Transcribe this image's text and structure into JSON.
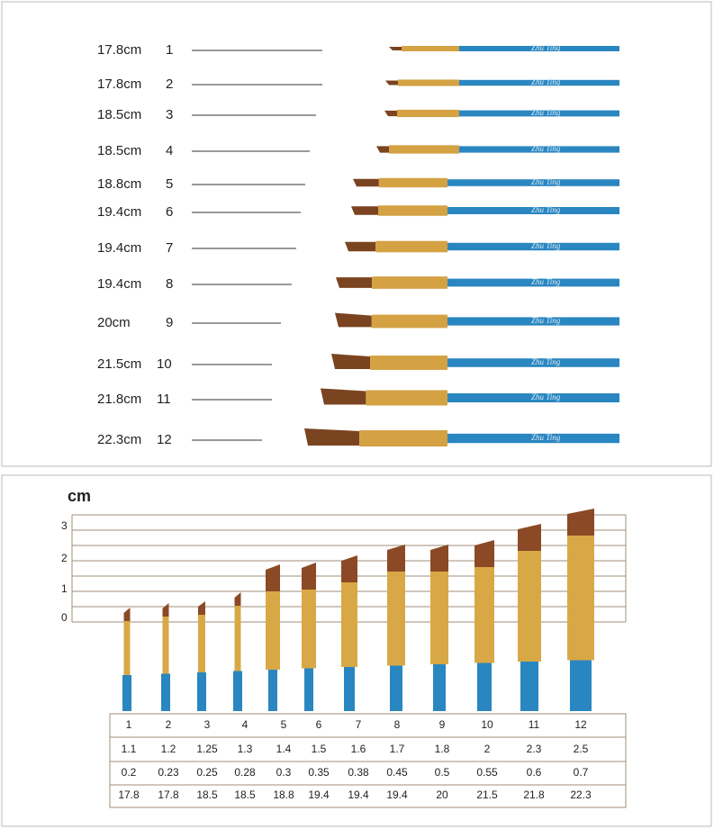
{
  "top_panel": {
    "brand": "Zhu Ting",
    "rows": [
      {
        "length": "17.8cm",
        "number": "1"
      },
      {
        "length": "17.8cm",
        "number": "2"
      },
      {
        "length": "18.5cm",
        "number": "3"
      },
      {
        "length": "18.5cm",
        "number": "4"
      },
      {
        "length": "18.8cm",
        "number": "5"
      },
      {
        "length": "19.4cm",
        "number": "6"
      },
      {
        "length": "19.4cm",
        "number": "7"
      },
      {
        "length": "19.4cm",
        "number": "8"
      },
      {
        "length": "20cm",
        "number": "9"
      },
      {
        "length": "21.5cm",
        "number": "10"
      },
      {
        "length": "21.8cm",
        "number": "11"
      },
      {
        "length": "22.3cm",
        "number": "12"
      }
    ]
  },
  "bottom_panel": {
    "unit": "cm",
    "ruler_ticks": [
      "0",
      "1",
      "2",
      "3"
    ],
    "table": {
      "rows": [
        [
          "1",
          "2",
          "3",
          "4",
          "5",
          "6",
          "7",
          "8",
          "9",
          "10",
          "11",
          "12"
        ],
        [
          "1.1",
          "1.2",
          "1.25",
          "1.3",
          "1.4",
          "1.5",
          "1.6",
          "1.7",
          "1.8",
          "2",
          "2.3",
          "2.5"
        ],
        [
          "0.2",
          "0.23",
          "0.25",
          "0.28",
          "0.3",
          "0.35",
          "0.38",
          "0.45",
          "0.5",
          "0.55",
          "0.6",
          "0.7"
        ],
        [
          "17.8",
          "17.8",
          "18.5",
          "18.5",
          "18.8",
          "19.4",
          "19.4",
          "19.4",
          "20",
          "21.5",
          "21.8",
          "22.3"
        ]
      ]
    }
  }
}
